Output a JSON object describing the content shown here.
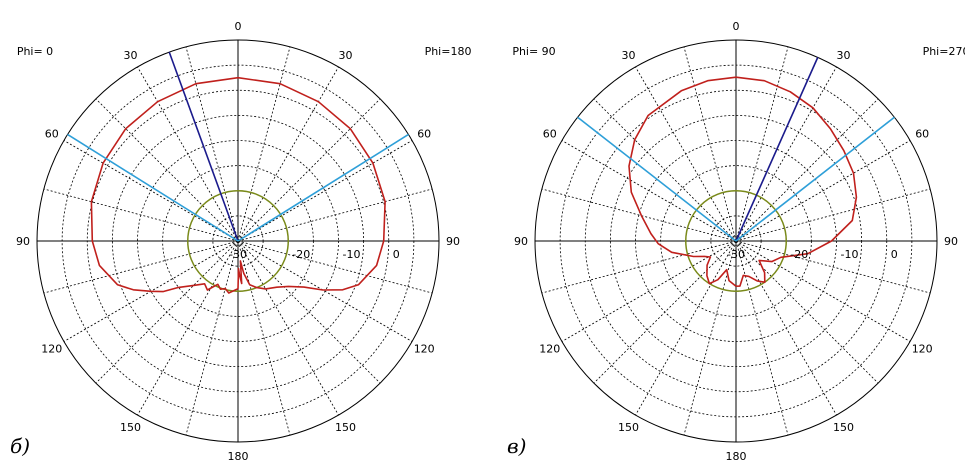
{
  "chart_data": [
    {
      "type": "polar",
      "panel_label": "б)",
      "phi_left": "Phi=  0",
      "phi_right": "Phi=180",
      "angle_labels": [
        "0",
        "30",
        "60",
        "90",
        "120",
        "150",
        "180",
        "150",
        "120",
        "90",
        "60",
        "30"
      ],
      "radial_labels": [
        "-30",
        "-20",
        "-10",
        "0"
      ],
      "rlim": [
        -30,
        10
      ],
      "angle_step": 15,
      "grid": true,
      "circle_level": -20,
      "rays": [
        {
          "angle": -20,
          "color": "#1b1b8c"
        },
        {
          "angle": -58,
          "color": "#2e9fd8"
        },
        {
          "angle": 58,
          "color": "#2e9fd8"
        }
      ],
      "pattern": [
        [
          -180,
          -20.5
        ],
        [
          -170,
          -19.5
        ],
        [
          -165,
          -20.2
        ],
        [
          -160,
          -19.8
        ],
        [
          -155,
          -20.5
        ],
        [
          -148,
          -18.5
        ],
        [
          -142,
          -19.2
        ],
        [
          -135,
          -17.5
        ],
        [
          -128,
          -15.0
        ],
        [
          -124,
          -12.0
        ],
        [
          -120,
          -10.0
        ],
        [
          -115,
          -7.0
        ],
        [
          -110,
          -4.5
        ],
        [
          -100,
          -2.0
        ],
        [
          -90,
          -1.0
        ],
        [
          -75,
          0.2
        ],
        [
          -60,
          1.0
        ],
        [
          -45,
          1.6
        ],
        [
          -30,
          2.0
        ],
        [
          -15,
          2.4
        ],
        [
          0,
          2.5
        ],
        [
          15,
          2.4
        ],
        [
          30,
          2.0
        ],
        [
          45,
          1.6
        ],
        [
          60,
          1.0
        ],
        [
          75,
          0.3
        ],
        [
          90,
          -1.0
        ],
        [
          100,
          -2.0
        ],
        [
          110,
          -4.5
        ],
        [
          115,
          -7.0
        ],
        [
          120,
          -10.5
        ],
        [
          125,
          -14.0
        ],
        [
          132,
          -16.5
        ],
        [
          140,
          -18.0
        ],
        [
          150,
          -19.0
        ],
        [
          158,
          -20.0
        ],
        [
          165,
          -21.0
        ],
        [
          170,
          -23.5
        ],
        [
          173,
          -26.0
        ],
        [
          175,
          -21.5
        ],
        [
          177,
          -23.0
        ],
        [
          179,
          -24.5
        ],
        [
          180,
          -20.5
        ]
      ]
    },
    {
      "type": "polar",
      "panel_label": "в)",
      "phi_left": "Phi= 90",
      "phi_right": "Phi=270",
      "angle_labels": [
        "0",
        "30",
        "60",
        "90",
        "120",
        "150",
        "180",
        "150",
        "120",
        "90",
        "60",
        "30"
      ],
      "radial_labels": [
        "-30",
        "-20",
        "-10",
        "0"
      ],
      "rlim": [
        -30,
        10
      ],
      "angle_step": 15,
      "grid": true,
      "circle_level": -20,
      "rays": [
        {
          "angle": 24,
          "color": "#1b1b8c"
        },
        {
          "angle": -52,
          "color": "#2e9fd8"
        },
        {
          "angle": 52,
          "color": "#2e9fd8"
        }
      ],
      "pattern": [
        [
          -180,
          -21.0
        ],
        [
          -170,
          -22.0
        ],
        [
          -162,
          -24.0
        ],
        [
          -155,
          -21.5
        ],
        [
          -148,
          -20.0
        ],
        [
          -140,
          -21.0
        ],
        [
          -130,
          -22.5
        ],
        [
          -122,
          -24.0
        ],
        [
          -116,
          -23.0
        ],
        [
          -110,
          -21.0
        ],
        [
          -100,
          -17.0
        ],
        [
          -92,
          -14.5
        ],
        [
          -85,
          -13.0
        ],
        [
          -75,
          -10.5
        ],
        [
          -65,
          -7.0
        ],
        [
          -55,
          -4.0
        ],
        [
          -45,
          -1.5
        ],
        [
          -35,
          0.5
        ],
        [
          -20,
          1.8
        ],
        [
          -10,
          2.4
        ],
        [
          0,
          2.6
        ],
        [
          10,
          2.4
        ],
        [
          20,
          1.6
        ],
        [
          30,
          0.6
        ],
        [
          40,
          -0.8
        ],
        [
          50,
          -2.0
        ],
        [
          60,
          -3.0
        ],
        [
          70,
          -4.5
        ],
        [
          80,
          -6.5
        ],
        [
          90,
          -11.0
        ],
        [
          100,
          -15.5
        ],
        [
          110,
          -20.5
        ],
        [
          120,
          -21.8
        ],
        [
          130,
          -24.0
        ],
        [
          138,
          -21.5
        ],
        [
          145,
          -20.0
        ],
        [
          152,
          -21.0
        ],
        [
          160,
          -22.5
        ],
        [
          168,
          -23.0
        ],
        [
          175,
          -21.0
        ],
        [
          180,
          -21.0
        ]
      ]
    }
  ]
}
